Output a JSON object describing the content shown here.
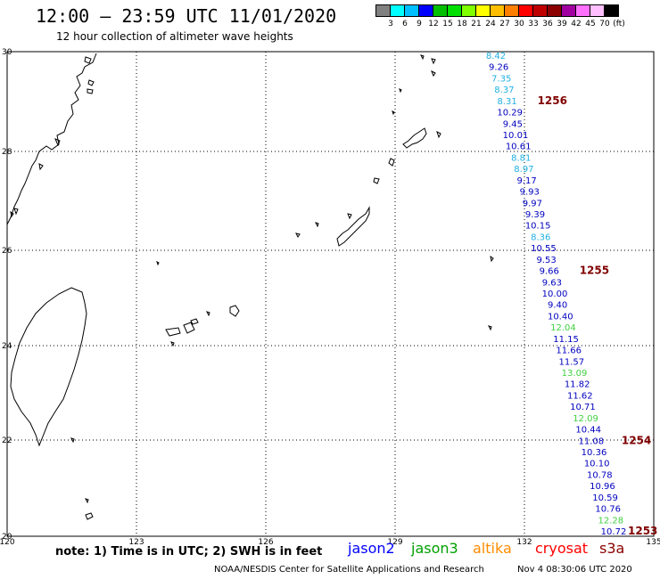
{
  "header": {
    "title": "12:00 — 23:59 UTC 11/01/2020",
    "subtitle": "12 hour collection of altimeter wave heights"
  },
  "legend": {
    "colors": [
      "#808080",
      "#00ffff",
      "#00bfff",
      "#0000ff",
      "#00bf00",
      "#00e000",
      "#7fff00",
      "#ffff00",
      "#ffbf00",
      "#ff7f00",
      "#ff0000",
      "#bf0000",
      "#8b0000",
      "#a000a0",
      "#ff70ff",
      "#ffbfff",
      "#000000"
    ],
    "labels": [
      "3",
      "6",
      "9",
      "12",
      "15",
      "18",
      "21",
      "24",
      "27",
      "30",
      "33",
      "36",
      "39",
      "42",
      "45",
      "70",
      "(ft)"
    ]
  },
  "map": {
    "lat_labels": [
      "30",
      "28",
      "26",
      "24",
      "22",
      "20"
    ],
    "lon_labels": [
      "120",
      "123",
      "126",
      "129",
      "132",
      "135"
    ]
  },
  "track_points": [
    {
      "v": "8.42",
      "c": "#20b0e0"
    },
    {
      "v": "9.26",
      "c": "#0000c0"
    },
    {
      "v": "7.35",
      "c": "#20b0e0"
    },
    {
      "v": "8.37",
      "c": "#20b0e0"
    },
    {
      "v": "8.31",
      "c": "#20b0e0"
    },
    {
      "v": "10.29",
      "c": "#0000c0"
    },
    {
      "v": "9.45",
      "c": "#0000c0"
    },
    {
      "v": "10.01",
      "c": "#0000c0"
    },
    {
      "v": "10.61",
      "c": "#0000c0"
    },
    {
      "v": "8.81",
      "c": "#20b0e0"
    },
    {
      "v": "8.97",
      "c": "#20b0e0"
    },
    {
      "v": "9.17",
      "c": "#0000c0"
    },
    {
      "v": "9.93",
      "c": "#0000c0"
    },
    {
      "v": "9.97",
      "c": "#0000c0"
    },
    {
      "v": "9.39",
      "c": "#0000c0"
    },
    {
      "v": "10.15",
      "c": "#0000c0"
    },
    {
      "v": "8.36",
      "c": "#20b0e0"
    },
    {
      "v": "10.55",
      "c": "#0000c0"
    },
    {
      "v": "9.53",
      "c": "#0000c0"
    },
    {
      "v": "9.66",
      "c": "#0000c0"
    },
    {
      "v": "9.63",
      "c": "#0000c0"
    },
    {
      "v": "10.00",
      "c": "#0000c0"
    },
    {
      "v": "9.40",
      "c": "#0000c0"
    },
    {
      "v": "10.40",
      "c": "#0000c0"
    },
    {
      "v": "12.04",
      "c": "#40d040"
    },
    {
      "v": "11.15",
      "c": "#0000c0"
    },
    {
      "v": "11.66",
      "c": "#0000c0"
    },
    {
      "v": "11.57",
      "c": "#0000c0"
    },
    {
      "v": "13.09",
      "c": "#40d040"
    },
    {
      "v": "11.82",
      "c": "#0000c0"
    },
    {
      "v": "11.62",
      "c": "#0000c0"
    },
    {
      "v": "10.71",
      "c": "#0000c0"
    },
    {
      "v": "12.09",
      "c": "#40d040"
    },
    {
      "v": "10.44",
      "c": "#0000c0"
    },
    {
      "v": "11.08",
      "c": "#0000c0"
    },
    {
      "v": "10.36",
      "c": "#0000c0"
    },
    {
      "v": "10.10",
      "c": "#0000c0"
    },
    {
      "v": "10.78",
      "c": "#0000c0"
    },
    {
      "v": "10.96",
      "c": "#0000c0"
    },
    {
      "v": "10.59",
      "c": "#0000c0"
    },
    {
      "v": "10.76",
      "c": "#0000c0"
    },
    {
      "v": "12.28",
      "c": "#40d040"
    },
    {
      "v": "10.72",
      "c": "#0000c0"
    }
  ],
  "track_labels": [
    {
      "text": "1256",
      "index": 4
    },
    {
      "text": "1255",
      "index": 19
    },
    {
      "text": "1254",
      "index": 34
    },
    {
      "text": "1253",
      "index": 42
    }
  ],
  "track_label_color": "#800000",
  "footer": {
    "note": "note: 1) Time is in UTC; 2) SWH is in feet",
    "satellites": [
      {
        "name": "jason2",
        "color": "#0000ff"
      },
      {
        "name": "jason3",
        "color": "#00a000"
      },
      {
        "name": "altika",
        "color": "#ff8c00"
      },
      {
        "name": "cryosat",
        "color": "#ff0000"
      },
      {
        "name": "s3a",
        "color": "#8b0000"
      }
    ],
    "credit": "NOAA/NESDIS Center for Satellite Applications and Research",
    "timestamp": "Nov  4 08:30:06 UTC 2020"
  }
}
